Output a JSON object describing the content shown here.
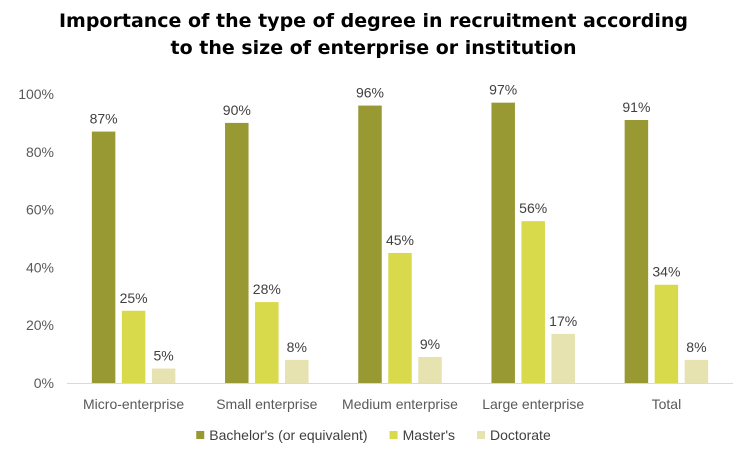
{
  "chart_data": {
    "type": "bar",
    "title_lines": [
      "Importance of the type of degree in recruitment according",
      "to the size of enterprise or institution"
    ],
    "categories": [
      "Micro-enterprise",
      "Small enterprise",
      "Medium enterprise",
      "Large enterprise",
      "Total"
    ],
    "series": [
      {
        "name": "Bachelor's (or equivalent)",
        "color": "#999933",
        "values": [
          87,
          90,
          96,
          97,
          91
        ],
        "labels": [
          "87%",
          "90%",
          "96%",
          "97%",
          "91%"
        ]
      },
      {
        "name": "Master's",
        "color": "#d9d94c",
        "values": [
          25,
          28,
          45,
          56,
          34
        ],
        "labels": [
          "25%",
          "28%",
          "45%",
          "56%",
          "34%"
        ]
      },
      {
        "name": "Doctorate",
        "color": "#e6e3b0",
        "values": [
          5,
          8,
          9,
          17,
          8
        ],
        "labels": [
          "5%",
          "8%",
          "9%",
          "17%",
          "8%"
        ]
      }
    ],
    "ylim": [
      0,
      100
    ],
    "yticks": [
      0,
      20,
      40,
      60,
      80,
      100
    ],
    "ytick_labels": [
      "0%",
      "20%",
      "40%",
      "60%",
      "80%",
      "100%"
    ],
    "grid": false,
    "legend": "bottom"
  }
}
